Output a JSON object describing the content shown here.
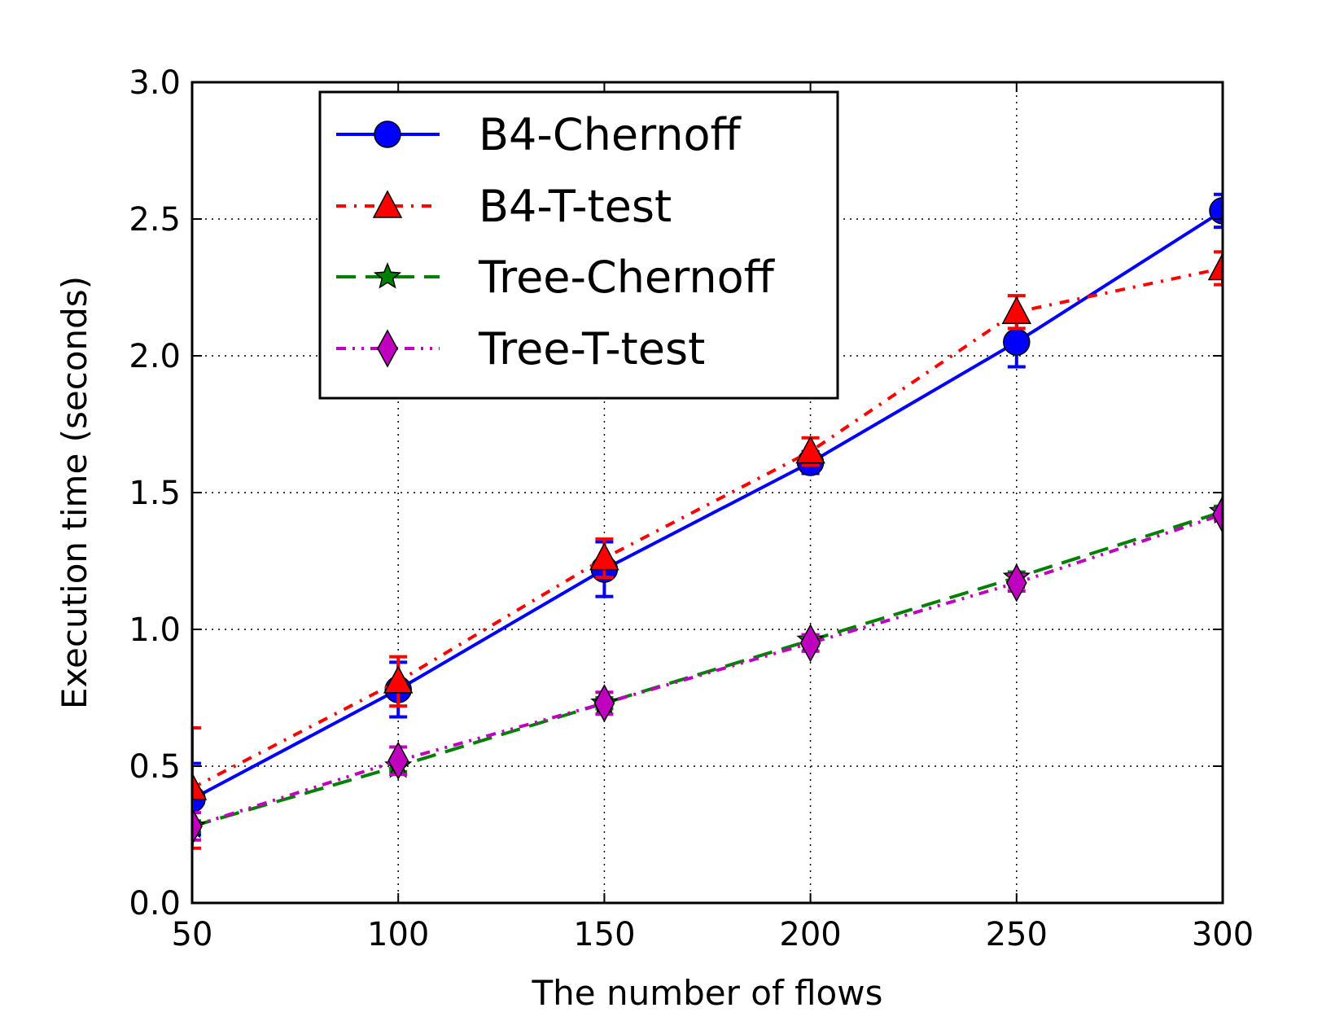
{
  "chart_data": {
    "type": "line",
    "xlabel": "The number of flows",
    "ylabel": "Execution time (seconds)",
    "xlim": [
      50,
      300
    ],
    "ylim": [
      0.0,
      3.0
    ],
    "x_ticks": [
      "50",
      "100",
      "150",
      "200",
      "250",
      "300"
    ],
    "y_ticks": [
      "0.0",
      "0.5",
      "1.0",
      "1.5",
      "2.0",
      "2.5",
      "3.0"
    ],
    "grid": true,
    "legend_position": "upper-left",
    "x": [
      50,
      100,
      150,
      200,
      250,
      300
    ],
    "series": [
      {
        "name": "B4-Chernoff",
        "color": "#0000ff",
        "marker": "circle",
        "line_style": "solid",
        "values": [
          0.38,
          0.78,
          1.22,
          1.61,
          2.05,
          2.53
        ],
        "error": [
          0.13,
          0.1,
          0.1,
          0.04,
          0.09,
          0.06
        ]
      },
      {
        "name": "B4-T-test",
        "color": "#ff0000",
        "marker": "triangle",
        "line_style": "dash-dot",
        "values": [
          0.42,
          0.81,
          1.26,
          1.65,
          2.16,
          2.32
        ],
        "error": [
          0.22,
          0.09,
          0.07,
          0.05,
          0.06,
          0.06
        ]
      },
      {
        "name": "Tree-Chernoff",
        "color": "#008000",
        "marker": "star",
        "line_style": "dashed",
        "values": [
          0.28,
          0.5,
          0.73,
          0.96,
          1.19,
          1.43
        ],
        "error": [
          0.02,
          0.02,
          0.02,
          0.02,
          0.02,
          0.02
        ]
      },
      {
        "name": "Tree-T-test",
        "color": "#bf00bf",
        "marker": "diamond",
        "line_style": "dash-dot-dot",
        "values": [
          0.28,
          0.52,
          0.73,
          0.95,
          1.17,
          1.42
        ],
        "error": [
          0.05,
          0.05,
          0.04,
          0.03,
          0.03,
          0.02
        ]
      }
    ]
  }
}
